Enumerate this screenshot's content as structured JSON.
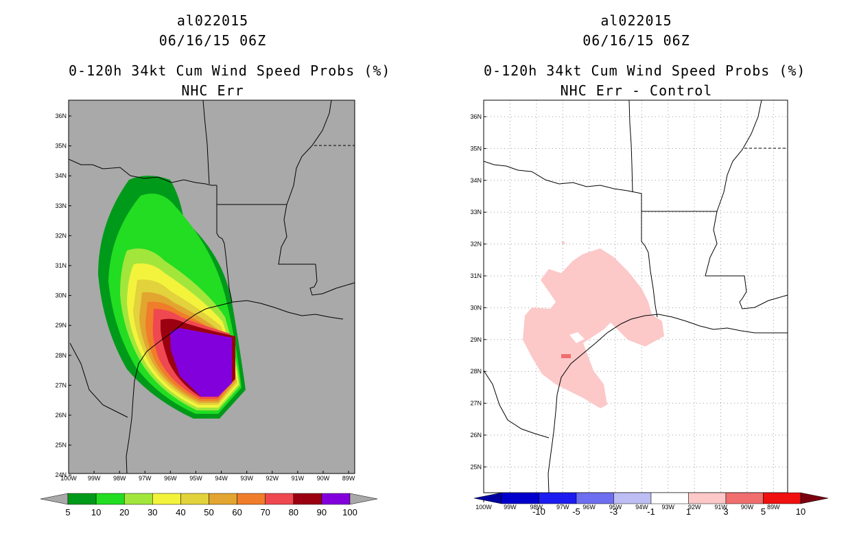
{
  "left_panel": {
    "storm_id": "al022015",
    "datetime": "06/16/15 06Z",
    "product": "0-120h 34kt Cum Wind Speed Probs (%)",
    "subtitle": "NHC Err",
    "lat_labels": [
      "36N",
      "35N",
      "34N",
      "33N",
      "32N",
      "31N",
      "30N",
      "29N",
      "28N",
      "27N",
      "26N",
      "25N",
      "24N"
    ],
    "lon_labels": [
      "100W",
      "99W",
      "98W",
      "97W",
      "96W",
      "95W",
      "94W",
      "93W",
      "92W",
      "91W",
      "90W",
      "89W"
    ],
    "colorbar": {
      "colors": [
        "#009a1a",
        "#22dd22",
        "#a2e63c",
        "#f3f33c",
        "#e2d23c",
        "#e2a530",
        "#ef7d2a",
        "#f04850",
        "#9a0010",
        "#8200dc"
      ],
      "labels": [
        "5",
        "10",
        "20",
        "30",
        "40",
        "50",
        "60",
        "70",
        "80",
        "90",
        "100"
      ],
      "underflow_color": "#a9a9a9",
      "overflow_color": "#a9a9a9"
    }
  },
  "right_panel": {
    "storm_id": "al022015",
    "datetime": "06/16/15 06Z",
    "product": "0-120h 34kt Cum Wind Speed Probs (%)",
    "subtitle": "NHC Err - Control",
    "lat_labels": [
      "36N",
      "35N",
      "34N",
      "33N",
      "32N",
      "31N",
      "30N",
      "29N",
      "28N",
      "27N",
      "26N",
      "25N"
    ],
    "lon_labels": [
      "100W",
      "99W",
      "98W",
      "97W",
      "96W",
      "95W",
      "94W",
      "93W",
      "92W",
      "91W",
      "90W",
      "89W"
    ],
    "colorbar": {
      "colors": [
        "#0000cc",
        "#1c1cf0",
        "#6e6ef0",
        "#bebef5",
        "#ffffff",
        "#fcc8c8",
        "#f06e6e",
        "#f01010"
      ],
      "labels": [
        "-10",
        "-5",
        "-3",
        "-1",
        "1",
        "3",
        "5",
        "10"
      ],
      "underflow_color": "#0000a0",
      "overflow_color": "#7a0010"
    }
  }
}
